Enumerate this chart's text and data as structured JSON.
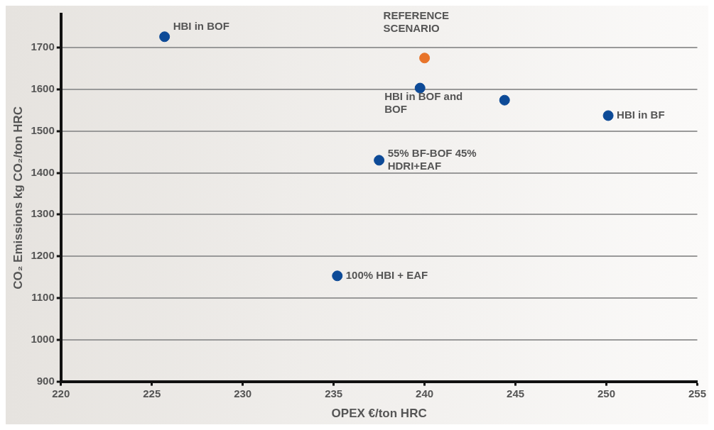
{
  "chart_data": {
    "type": "scatter",
    "xlabel": "OPEX €/ton HRC",
    "ylabel": "CO₂ Emissions kg CO₂/ton HRC",
    "x": [
      225.7,
      240.0,
      239.75,
      244.4,
      250.1,
      237.5,
      235.2
    ],
    "series": [
      {
        "values": [
          1726,
          1675,
          1603,
          1574,
          1537,
          1430,
          1153
        ],
        "colors": [
          "#0d4a97",
          "#e8742a",
          "#0d4a97",
          "#0d4a97",
          "#0d4a97",
          "#0d4a97",
          "#0d4a97"
        ]
      }
    ],
    "xlim": [
      220,
      255
    ],
    "xticks": [
      220,
      225,
      230,
      235,
      240,
      245,
      250,
      255
    ],
    "ylim": [
      900,
      1780
    ],
    "yticks": [
      900,
      1000,
      1100,
      1200,
      1300,
      1400,
      1500,
      1600,
      1700
    ],
    "grid": "y",
    "legend": false,
    "marker": "circle",
    "annotations": [
      {
        "text": "HBI in BOF",
        "x": 225.7,
        "y": 1726
      },
      {
        "text": "REFERENCE SCENARIO",
        "x": 240.0,
        "y": 1675
      },
      {
        "text": "HBI in BOF and BOF",
        "x": 239.75,
        "y": 1603
      },
      {
        "text": "HBI in BF",
        "x": 250.1,
        "y": 1537
      },
      {
        "text": "55% BF-BOF 45% HDRI+EAF",
        "x": 237.5,
        "y": 1430
      },
      {
        "text": "100% HBI + EAF",
        "x": 235.2,
        "y": 1153
      }
    ]
  }
}
